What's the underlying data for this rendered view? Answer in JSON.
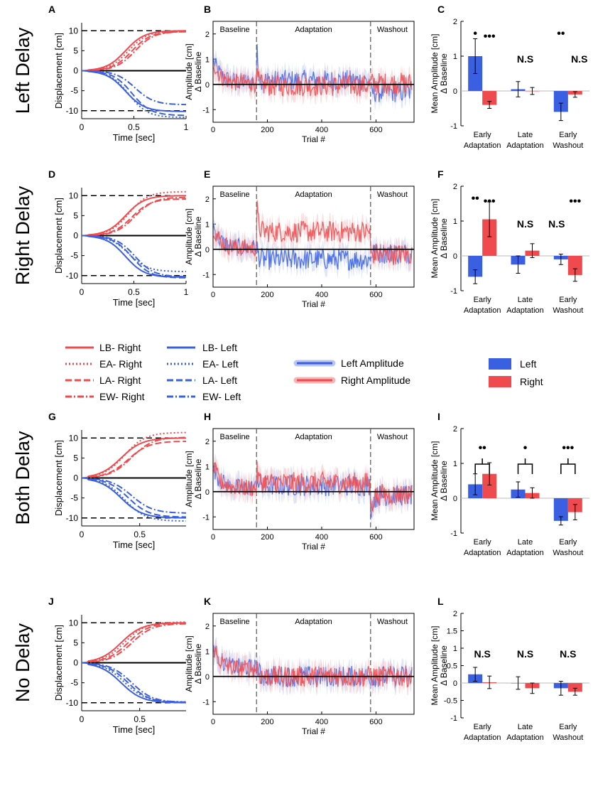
{
  "colors": {
    "left": "#3a5fe0",
    "right": "#ef4a4e",
    "left_band": "#b9c6f4",
    "right_band": "#f6b6b8"
  },
  "rows": [
    {
      "label": "Left Delay",
      "letters": [
        "A",
        "B",
        "C"
      ],
      "pos_y": 100,
      "trace_x": [
        0,
        1
      ],
      "trace_ticks": [
        "0",
        "0.5",
        "1"
      ]
    },
    {
      "label": "Right Delay",
      "letters": [
        "D",
        "E",
        "F"
      ],
      "pos_y": 335,
      "trace_x": [
        0,
        1
      ],
      "trace_ticks": [
        "0",
        "0.5",
        "1"
      ]
    },
    {
      "label": "Both Delay",
      "letters": [
        "G",
        "H",
        "I"
      ],
      "pos_y": 600,
      "trace_x": [
        0,
        0.9
      ],
      "trace_ticks": [
        "0",
        "0.5"
      ]
    },
    {
      "label": "No Delay",
      "letters": [
        "J",
        "K",
        "L"
      ],
      "pos_y": 860,
      "trace_x": [
        0,
        0.9
      ],
      "trace_ticks": [
        "0",
        "0.5"
      ]
    }
  ],
  "legend": {
    "right_entries": [
      "LB- Right",
      "EA- Right",
      "LA- Right",
      "EW- Right"
    ],
    "left_entries": [
      "LB- Left",
      "EA- Left",
      "LA- Left",
      "EW- Left"
    ],
    "amplitude_entries": [
      "Left Amplitude",
      "Right Amplitude"
    ],
    "bar_entries": [
      "Left",
      "Right"
    ]
  },
  "chart_data": [
    {
      "panel": "traces",
      "type": "line",
      "xlabel": "Time [sec]",
      "ylabel": "Displacement [cm]",
      "ylim": [
        -12,
        12
      ],
      "yticks": [
        10,
        5,
        0,
        -5,
        -10
      ],
      "reference_lines": [
        10,
        0,
        -10
      ],
      "series_styles": [
        "solid",
        "dotted",
        "dashed",
        "dashdot"
      ],
      "final_values": {
        "A": {
          "right": [
            10,
            10,
            9.8,
            9.8
          ],
          "left": [
            -10.2,
            -11.7,
            -11.2,
            -8.5
          ]
        },
        "D": {
          "right": [
            10,
            11,
            9.2,
            9.6
          ],
          "left": [
            -10.4,
            -9.0,
            -10.6,
            -10.3
          ]
        },
        "G": {
          "right": [
            10,
            11.4,
            9.2,
            10.2
          ],
          "left": [
            -10,
            -10.8,
            -9.8,
            -8.8
          ]
        },
        "J": {
          "right": [
            10,
            10.2,
            10,
            9.8
          ],
          "left": [
            -10,
            -9.8,
            -10,
            -9.9
          ]
        }
      }
    },
    {
      "panel": "amplitude",
      "type": "line",
      "title_segments": [
        "Baseline",
        "Adaptation",
        "Washout"
      ],
      "xlabel": "Trial #",
      "ylabel": "Amplitude [cm]",
      "ylabel2": "Δ Baseline",
      "xlim": [
        0,
        740
      ],
      "xticks": [
        0,
        200,
        400,
        600
      ],
      "ylim": [
        -1.5,
        2.5
      ],
      "yticks": [
        2,
        1,
        0,
        -1
      ],
      "phase_boundaries": [
        160,
        580
      ],
      "series": [
        {
          "name": "Left Amplitude"
        },
        {
          "name": "Right Amplitude"
        }
      ],
      "phase_means": {
        "B": {
          "left": [
            0.1,
            0.15,
            -0.3
          ],
          "right": [
            0.05,
            -0.05,
            0.05
          ]
        },
        "E": {
          "left": [
            0.05,
            -0.4,
            -0.15
          ],
          "right": [
            0.05,
            0.7,
            -0.2
          ]
        },
        "H": {
          "left": [
            0.15,
            0.25,
            -0.15
          ],
          "right": [
            0.15,
            0.35,
            -0.1
          ]
        },
        "K": {
          "left": [
            0.35,
            0.0,
            0.0
          ],
          "right": [
            0.3,
            0.0,
            0.0
          ]
        }
      }
    },
    {
      "panel": "bars",
      "type": "bar",
      "ylabel": "Mean Amplitude [cm]",
      "ylabel2": "Δ Baseline",
      "categories": [
        [
          "Early",
          "Adaptation"
        ],
        [
          "Late",
          "Adaptation"
        ],
        [
          "Early",
          "Washout"
        ]
      ],
      "ylim": [
        -1,
        2
      ],
      "yticks": [
        2,
        1,
        0,
        -1
      ],
      "panels": {
        "C": {
          "left": [
            1.0,
            0.05,
            -0.6
          ],
          "right": [
            -0.4,
            0.0,
            -0.1
          ],
          "left_err": [
            0.5,
            0.22,
            0.25
          ],
          "right_err": [
            0.1,
            0.1,
            0.08
          ],
          "annotations": [
            [
              "•",
              "•••"
            ],
            [
              "N.S"
            ],
            [
              "••",
              "N.S"
            ]
          ]
        },
        "F": {
          "left": [
            -0.6,
            -0.25,
            -0.1
          ],
          "right": [
            1.05,
            0.15,
            -0.55
          ],
          "left_err": [
            0.2,
            0.25,
            0.15
          ],
          "right_err": [
            0.5,
            0.2,
            0.18
          ],
          "annotations": [
            [
              "••",
              "•••"
            ],
            [
              "N.S"
            ],
            [
              "N.S",
              "•••"
            ]
          ]
        },
        "I": {
          "left": [
            0.4,
            0.25,
            -0.65
          ],
          "right": [
            0.7,
            0.15,
            -0.4
          ],
          "left_err": [
            0.3,
            0.22,
            0.12
          ],
          "right_err": [
            0.32,
            0.15,
            0.22
          ],
          "annotations": [
            [
              "••"
            ],
            [
              "•"
            ],
            [
              "•••"
            ]
          ]
        },
        "L": {
          "left": [
            0.25,
            0.0,
            -0.15
          ],
          "right": [
            0.02,
            -0.15,
            -0.25
          ],
          "left_err": [
            0.2,
            0.18,
            0.2
          ],
          "right_err": [
            0.18,
            0.15,
            0.1
          ],
          "ylim": [
            -1,
            2
          ],
          "yticks": [
            2,
            1.5,
            1,
            0.5,
            0,
            -0.5,
            -1
          ],
          "annotations": [
            [
              "N.S"
            ],
            [
              "N.S"
            ],
            [
              "N.S"
            ]
          ]
        }
      }
    }
  ]
}
